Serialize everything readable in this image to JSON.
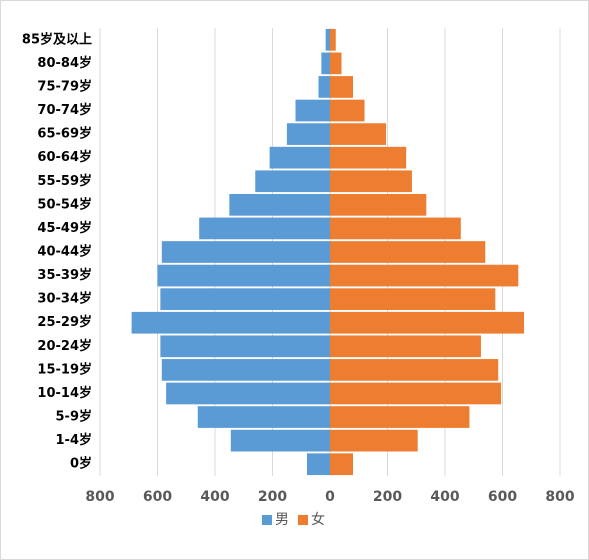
{
  "chart_data": {
    "type": "bar",
    "orientation": "horizontal",
    "layout": "population-pyramid",
    "categories": [
      "0岁",
      "1-4岁",
      "5-9岁",
      "10-14岁",
      "15-19岁",
      "20-24岁",
      "25-29岁",
      "30-34岁",
      "35-39岁",
      "40-44岁",
      "45-49岁",
      "50-54岁",
      "55-59岁",
      "60-64岁",
      "65-69岁",
      "70-74岁",
      "75-79岁",
      "80-84岁",
      "85岁及以上"
    ],
    "series": [
      {
        "name": "男",
        "color": "#5b9bd5",
        "side": "left",
        "values": [
          80,
          345,
          460,
          570,
          585,
          590,
          690,
          590,
          600,
          585,
          455,
          350,
          260,
          210,
          150,
          120,
          40,
          30,
          15
        ]
      },
      {
        "name": "女",
        "color": "#ed7d31",
        "side": "right",
        "values": [
          80,
          305,
          485,
          595,
          585,
          525,
          675,
          575,
          655,
          540,
          455,
          335,
          285,
          265,
          195,
          120,
          80,
          40,
          20
        ]
      }
    ],
    "xlim": [
      -800,
      800
    ],
    "x_ticks": [
      -800,
      -600,
      -400,
      -200,
      0,
      200,
      400,
      600,
      800
    ],
    "x_tick_labels": [
      "800",
      "600",
      "400",
      "200",
      "0",
      "200",
      "400",
      "600",
      "800"
    ],
    "grid": true,
    "legend": "bottom",
    "title": "",
    "xlabel": "",
    "ylabel": ""
  }
}
